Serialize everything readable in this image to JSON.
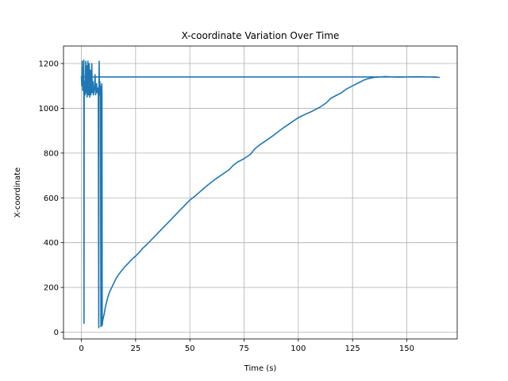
{
  "chart_data": {
    "type": "line",
    "title": "X-coordinate Variation Over Time",
    "xlabel": "Time (s)",
    "ylabel": "X-coordinate",
    "xlim": [
      -8.25,
      173.25
    ],
    "ylim": [
      -30,
      1278
    ],
    "xticks": [
      0,
      25,
      50,
      75,
      100,
      125,
      150
    ],
    "yticks": [
      0,
      200,
      400,
      600,
      800,
      1000,
      1200
    ],
    "grid": true,
    "line_color": "#1f77b4",
    "series": [
      {
        "x": [
          0.0,
          0.2,
          0.4,
          0.6,
          0.8,
          1.0,
          1.1,
          1.2,
          1.3,
          1.5,
          1.7,
          2.0,
          2.2,
          2.4,
          2.6,
          2.8,
          3.0,
          3.2,
          3.4,
          3.6,
          3.8,
          4.0,
          4.2,
          4.4,
          4.6,
          4.8,
          5.0,
          5.3,
          5.6,
          6.0,
          6.3,
          6.6,
          7.0,
          7.3,
          7.6,
          7.8,
          8.0,
          8.1,
          8.2,
          8.3,
          8.4,
          8.5,
          8.6,
          8.8,
          9.0,
          9.2,
          9.4,
          9.5,
          9.6,
          9.8,
          10.0,
          10.5,
          11.0,
          12.0,
          13.0,
          14.0,
          15.0,
          16.0,
          17.0,
          18.0,
          19.0,
          20.0,
          21.0,
          22.0,
          23.0,
          24.0,
          25.0,
          26.0,
          27.0,
          28.0,
          30.0,
          32.0,
          35.0,
          38.0,
          40.0,
          42.0,
          45.0,
          48.0,
          50.0,
          52.0,
          55.0,
          58.0,
          60.0,
          62.0,
          65.0,
          68.0,
          70.0,
          72.0,
          75.0,
          78.0,
          80.0,
          82.0,
          85.0,
          88.0,
          90.0,
          92.0,
          95.0,
          98.0,
          100.0,
          103.0,
          106.0,
          110.0,
          113.0,
          115.0,
          118.0,
          120.0,
          122.0,
          125.0,
          128.0,
          130.0,
          132.0,
          135.0,
          138.0,
          140.0,
          143.0,
          146.0,
          150.0,
          155.0,
          160.0,
          163.0,
          165.0,
          163.0,
          150.0,
          100.0,
          50.0,
          10.0,
          0.0
        ],
        "y": [
          1140,
          1100,
          1210,
          1080,
          1150,
          1090,
          1215,
          40,
          1100,
          1120,
          1060,
          1210,
          1070,
          1190,
          1050,
          1140,
          1210,
          1060,
          1100,
          1200,
          1050,
          1120,
          1170,
          1060,
          1100,
          1200,
          1070,
          1120,
          1060,
          1090,
          1150,
          1060,
          1110,
          1070,
          1090,
          1060,
          20,
          1100,
          1210,
          1080,
          1060,
          1120,
          1070,
          1100,
          25,
          40,
          1110,
          1060,
          30,
          50,
          60,
          80,
          110,
          150,
          180,
          200,
          220,
          240,
          255,
          268,
          280,
          292,
          302,
          312,
          322,
          332,
          340,
          350,
          360,
          372,
          390,
          410,
          440,
          470,
          490,
          510,
          540,
          570,
          590,
          605,
          630,
          655,
          670,
          685,
          705,
          725,
          745,
          760,
          775,
          795,
          820,
          835,
          855,
          875,
          890,
          905,
          925,
          945,
          958,
          972,
          985,
          1005,
          1025,
          1045,
          1060,
          1070,
          1085,
          1100,
          1115,
          1125,
          1132,
          1138,
          1140,
          1142,
          1140,
          1139,
          1140,
          1141,
          1140,
          1139,
          1138,
          1140,
          1140,
          1140,
          1140,
          1140,
          1140
        ]
      }
    ]
  }
}
